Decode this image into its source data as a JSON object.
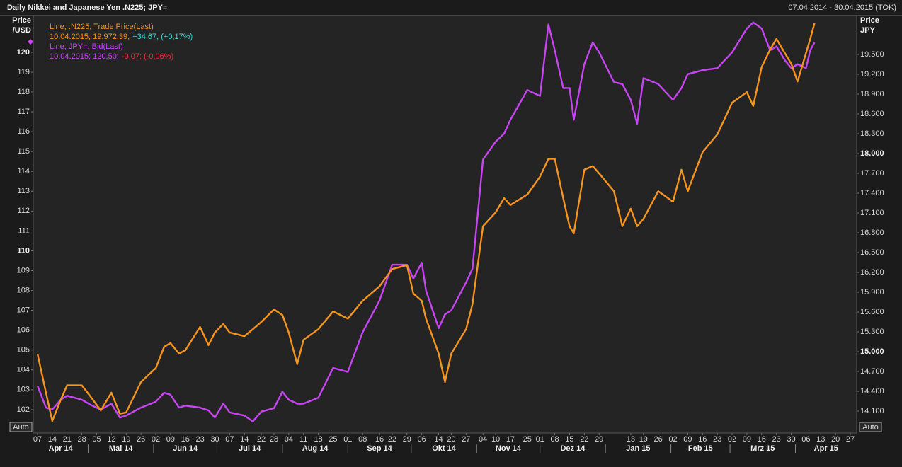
{
  "chart_data": {
    "type": "line",
    "title": "Daily Nikkei and Japanese Yen .N225; JPY=",
    "date_range": "07.04.2014 - 30.04.2015 (TOK)",
    "ylabel": [
      "Price",
      "/USD"
    ],
    "y2label": [
      "Price",
      "JPY"
    ],
    "buttons": [
      "Auto",
      "Auto"
    ],
    "grid": false,
    "x": [
      "2014-04-07",
      "2014-04-11",
      "2014-04-14",
      "2014-04-18",
      "2014-04-21",
      "2014-04-28",
      "2014-05-02",
      "2014-05-07",
      "2014-05-12",
      "2014-05-16",
      "2014-05-19",
      "2014-05-26",
      "2014-06-02",
      "2014-06-06",
      "2014-06-09",
      "2014-06-13",
      "2014-06-16",
      "2014-06-23",
      "2014-06-27",
      "2014-06-30",
      "2014-07-04",
      "2014-07-07",
      "2014-07-14",
      "2014-07-18",
      "2014-07-22",
      "2014-07-28",
      "2014-08-01",
      "2014-08-04",
      "2014-08-08",
      "2014-08-11",
      "2014-08-18",
      "2014-08-25",
      "2014-09-01",
      "2014-09-08",
      "2014-09-16",
      "2014-09-22",
      "2014-09-29",
      "2014-10-02",
      "2014-10-06",
      "2014-10-08",
      "2014-10-14",
      "2014-10-17",
      "2014-10-20",
      "2014-10-27",
      "2014-10-30",
      "2014-11-04",
      "2014-11-10",
      "2014-11-14",
      "2014-11-17",
      "2014-11-25",
      "2014-12-01",
      "2014-12-05",
      "2014-12-08",
      "2014-12-12",
      "2014-12-15",
      "2014-12-17",
      "2014-12-22",
      "2014-12-26",
      "2014-12-29",
      "2015-01-05",
      "2015-01-09",
      "2015-01-13",
      "2015-01-16",
      "2015-01-19",
      "2015-01-26",
      "2015-02-02",
      "2015-02-06",
      "2015-02-09",
      "2015-02-16",
      "2015-02-23",
      "2015-03-02",
      "2015-03-09",
      "2015-03-12",
      "2015-03-16",
      "2015-03-20",
      "2015-03-23",
      "2015-03-27",
      "2015-03-30",
      "2015-04-02",
      "2015-04-06",
      "2015-04-08",
      "2015-04-10"
    ],
    "xlim": [
      "2014-04-05",
      "2015-04-30"
    ],
    "xticks": [
      {
        "value": "2014-04-07",
        "label": "07"
      },
      {
        "value": "2014-04-14",
        "label": "14"
      },
      {
        "value": "2014-04-21",
        "label": "21"
      },
      {
        "value": "2014-04-28",
        "label": "28"
      },
      {
        "value": "2014-05-05",
        "label": "05"
      },
      {
        "value": "2014-05-12",
        "label": "12"
      },
      {
        "value": "2014-05-19",
        "label": "19"
      },
      {
        "value": "2014-05-26",
        "label": "26"
      },
      {
        "value": "2014-06-02",
        "label": "02"
      },
      {
        "value": "2014-06-09",
        "label": "09"
      },
      {
        "value": "2014-06-16",
        "label": "16"
      },
      {
        "value": "2014-06-23",
        "label": "23"
      },
      {
        "value": "2014-06-30",
        "label": "30"
      },
      {
        "value": "2014-07-07",
        "label": "07"
      },
      {
        "value": "2014-07-14",
        "label": "14"
      },
      {
        "value": "2014-07-22",
        "label": "22"
      },
      {
        "value": "2014-07-28",
        "label": "28"
      },
      {
        "value": "2014-08-04",
        "label": "04"
      },
      {
        "value": "2014-08-11",
        "label": "11"
      },
      {
        "value": "2014-08-18",
        "label": "18"
      },
      {
        "value": "2014-08-25",
        "label": "25"
      },
      {
        "value": "2014-09-01",
        "label": "01"
      },
      {
        "value": "2014-09-08",
        "label": "08"
      },
      {
        "value": "2014-09-16",
        "label": "16"
      },
      {
        "value": "2014-09-22",
        "label": "22"
      },
      {
        "value": "2014-09-29",
        "label": "29"
      },
      {
        "value": "2014-10-06",
        "label": "06"
      },
      {
        "value": "2014-10-14",
        "label": "14"
      },
      {
        "value": "2014-10-20",
        "label": "20"
      },
      {
        "value": "2014-10-27",
        "label": "27"
      },
      {
        "value": "2014-11-04",
        "label": "04"
      },
      {
        "value": "2014-11-10",
        "label": "10"
      },
      {
        "value": "2014-11-17",
        "label": "17"
      },
      {
        "value": "2014-11-25",
        "label": "25"
      },
      {
        "value": "2014-12-01",
        "label": "01"
      },
      {
        "value": "2014-12-08",
        "label": "08"
      },
      {
        "value": "2014-12-15",
        "label": "15"
      },
      {
        "value": "2014-12-22",
        "label": "22"
      },
      {
        "value": "2014-12-29",
        "label": "29"
      },
      {
        "value": "2015-01-13",
        "label": "13"
      },
      {
        "value": "2015-01-19",
        "label": "19"
      },
      {
        "value": "2015-01-26",
        "label": "26"
      },
      {
        "value": "2015-02-02",
        "label": "02"
      },
      {
        "value": "2015-02-09",
        "label": "09"
      },
      {
        "value": "2015-02-16",
        "label": "16"
      },
      {
        "value": "2015-02-23",
        "label": "23"
      },
      {
        "value": "2015-03-02",
        "label": "02"
      },
      {
        "value": "2015-03-09",
        "label": "09"
      },
      {
        "value": "2015-03-16",
        "label": "16"
      },
      {
        "value": "2015-03-23",
        "label": "23"
      },
      {
        "value": "2015-03-30",
        "label": "30"
      },
      {
        "value": "2015-04-06",
        "label": "06"
      },
      {
        "value": "2015-04-13",
        "label": "13"
      },
      {
        "value": "2015-04-20",
        "label": "20"
      },
      {
        "value": "2015-04-27",
        "label": "27"
      }
    ],
    "month_labels": [
      {
        "value": "2014-04",
        "label": "Apr 14"
      },
      {
        "value": "2014-05",
        "label": "Mai 14"
      },
      {
        "value": "2014-06",
        "label": "Jun 14"
      },
      {
        "value": "2014-07",
        "label": "Jul 14"
      },
      {
        "value": "2014-08",
        "label": "Aug 14"
      },
      {
        "value": "2014-09",
        "label": "Sep 14"
      },
      {
        "value": "2014-10",
        "label": "Okt 14"
      },
      {
        "value": "2014-11",
        "label": "Nov 14"
      },
      {
        "value": "2014-12",
        "label": "Dez 14"
      },
      {
        "value": "2015-01",
        "label": "Jan 15"
      },
      {
        "value": "2015-02",
        "label": "Feb 15"
      },
      {
        "value": "2015-03",
        "label": "Mrz 15"
      },
      {
        "value": "2015-04",
        "label": "Apr 15"
      }
    ],
    "ylim": [
      100.82,
      121.85
    ],
    "yticks": [
      102,
      103,
      104,
      105,
      106,
      107,
      108,
      109,
      110,
      111,
      112,
      113,
      114,
      115,
      116,
      117,
      118,
      119,
      120
    ],
    "y2lim": [
      13768,
      20089
    ],
    "y2ticks": [
      {
        "value": 14100,
        "label": "14.100"
      },
      {
        "value": 14400,
        "label": "14.400"
      },
      {
        "value": 14700,
        "label": "14.700"
      },
      {
        "value": 15000,
        "label": "15.000"
      },
      {
        "value": 15300,
        "label": "15.300"
      },
      {
        "value": 15600,
        "label": "15.600"
      },
      {
        "value": 15900,
        "label": "15.900"
      },
      {
        "value": 16200,
        "label": "16.200"
      },
      {
        "value": 16500,
        "label": "16.500"
      },
      {
        "value": 16800,
        "label": "16.800"
      },
      {
        "value": 17100,
        "label": "17.100"
      },
      {
        "value": 17400,
        "label": "17.400"
      },
      {
        "value": 17700,
        "label": "17.700"
      },
      {
        "value": 18000,
        "label": "18.000"
      },
      {
        "value": 18300,
        "label": "18.300"
      },
      {
        "value": 18600,
        "label": "18.600"
      },
      {
        "value": 18900,
        "label": "18.900"
      },
      {
        "value": 19200,
        "label": "19.200"
      },
      {
        "value": 19500,
        "label": "19.500"
      }
    ],
    "series": [
      {
        "name": "Line; .N225; Trade Price(Last)",
        "color": "#f7941d",
        "axis": "y2",
        "last": "10.04.2015; 19.972,39;",
        "change": "+34,67; (+0,17%)",
        "change_color": "#3fd8d8",
        "values": [
          14968,
          14380,
          13950,
          14270,
          14490,
          14490,
          14325,
          14110,
          14380,
          14060,
          14080,
          14540,
          14750,
          15075,
          15130,
          14970,
          15020,
          15375,
          15100,
          15290,
          15420,
          15290,
          15235,
          15340,
          15450,
          15640,
          15555,
          15290,
          14810,
          15180,
          15340,
          15610,
          15500,
          15770,
          15990,
          16250,
          16310,
          15880,
          15770,
          15500,
          14970,
          14540,
          14970,
          15340,
          15720,
          16900,
          17110,
          17325,
          17220,
          17380,
          17650,
          17920,
          17920,
          17325,
          16900,
          16790,
          17755,
          17810,
          17700,
          17430,
          16900,
          17165,
          16900,
          17010,
          17430,
          17270,
          17755,
          17430,
          18020,
          18290,
          18770,
          18930,
          18720,
          19310,
          19575,
          19735,
          19520,
          19360,
          19090,
          19520,
          19735,
          19972.39
        ]
      },
      {
        "name": "Line; JPY=; Bid(Last)",
        "color": "#c845f5",
        "axis": "y",
        "last": "10.04.2015; 120,50;",
        "change": "-0,07; (-0,06%)",
        "change_color": "#e8303a",
        "values": [
          103.2,
          102.1,
          102.0,
          102.5,
          102.7,
          102.5,
          102.25,
          102.0,
          102.3,
          101.6,
          101.7,
          102.1,
          102.4,
          102.85,
          102.75,
          102.1,
          102.2,
          102.1,
          101.96,
          101.6,
          102.3,
          101.86,
          101.7,
          101.4,
          101.9,
          102.07,
          102.9,
          102.5,
          102.3,
          102.3,
          102.6,
          104.1,
          103.9,
          105.9,
          107.5,
          109.3,
          109.3,
          108.6,
          109.4,
          108.0,
          106.1,
          106.8,
          107.0,
          108.4,
          109.1,
          114.6,
          115.5,
          115.9,
          116.6,
          118.1,
          117.8,
          121.4,
          120.1,
          118.2,
          118.2,
          116.6,
          119.4,
          120.5,
          120.0,
          118.5,
          118.4,
          117.6,
          116.4,
          118.7,
          118.4,
          117.6,
          118.2,
          118.9,
          119.1,
          119.2,
          120.0,
          121.2,
          121.5,
          121.2,
          120.1,
          120.3,
          119.6,
          119.2,
          119.4,
          119.2,
          120.1,
          120.5
        ]
      }
    ]
  }
}
